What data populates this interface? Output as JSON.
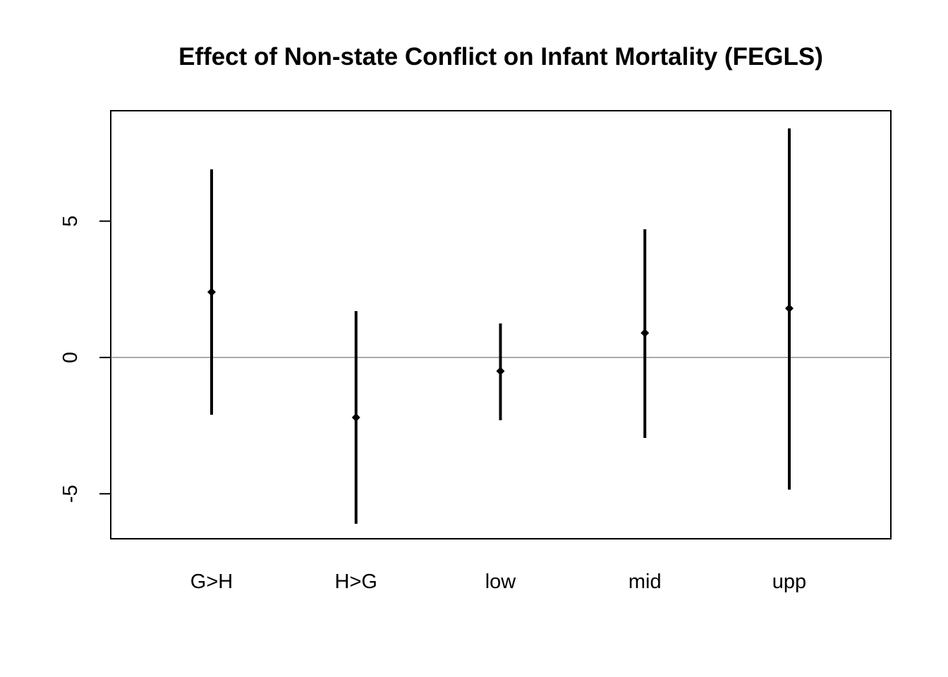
{
  "chart_data": {
    "type": "errorbar",
    "title": "Effect of Non-state Conflict on Infant Mortality (FEGLS)",
    "xlabel": "",
    "ylabel": "",
    "categories": [
      "G>H",
      "H>G",
      "low",
      "mid",
      "upp"
    ],
    "estimates": [
      2.4,
      -2.2,
      -0.5,
      0.9,
      1.8
    ],
    "lower": [
      -2.1,
      -6.1,
      -2.3,
      -2.95,
      -4.85
    ],
    "upper": [
      6.9,
      1.7,
      1.25,
      4.7,
      8.4
    ],
    "ylim": [
      -6.65,
      9.05
    ],
    "yticks": [
      -5,
      0,
      5
    ],
    "ytick_labels": [
      "-5",
      "0",
      "5"
    ],
    "reference_line": 0,
    "grid": false,
    "legend": "none",
    "color": "#000000"
  }
}
